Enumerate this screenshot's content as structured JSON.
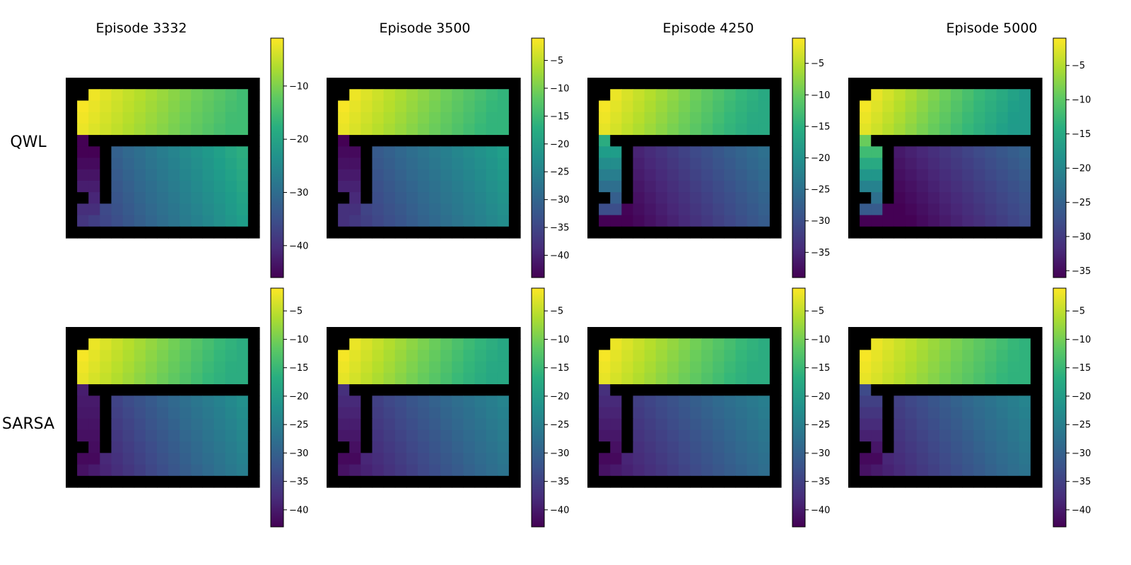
{
  "columns": [
    "Episode 3332",
    "Episode 3500",
    "Episode 4250",
    "Episode 5000"
  ],
  "rows": [
    "QWL",
    "SARSA"
  ],
  "chart_data": {
    "type": "heatmap",
    "colormap": "viridis",
    "grid_cols": 17,
    "grid_rows": 14,
    "walls": "outer border; horizontal inner wall across row 5 from col 2 to col 15; vertical inner wall at col 3 from row 6 to row 11; corner cell (1,1) and (10,1) blocked",
    "panels": [
      {
        "row": "QWL",
        "column": "Episode 3332",
        "colorbar": {
          "vmin": -46,
          "vmax": -1,
          "ticks": [
            -10,
            -20,
            -30,
            -40
          ]
        },
        "top_room": [
          -1,
          -15
        ],
        "left_corridor": [
          -46,
          -40
        ],
        "right_room": [
          -18,
          -36
        ]
      },
      {
        "row": "QWL",
        "column": "Episode 3500",
        "colorbar": {
          "vmin": -44,
          "vmax": -1,
          "ticks": [
            -5,
            -10,
            -15,
            -20,
            -25,
            -30,
            -35,
            -40
          ]
        },
        "top_room": [
          -1,
          -16
        ],
        "left_corridor": [
          -43,
          -38
        ],
        "right_room": [
          -20,
          -35
        ]
      },
      {
        "row": "QWL",
        "column": "Episode 4250",
        "colorbar": {
          "vmin": -39,
          "vmax": -1,
          "ticks": [
            -5,
            -10,
            -15,
            -20,
            -25,
            -30,
            -35
          ]
        },
        "top_room": [
          -1,
          -16
        ],
        "left_corridor": [
          -18,
          -30
        ],
        "right_room": [
          -25,
          -38
        ]
      },
      {
        "row": "QWL",
        "column": "Episode 5000",
        "colorbar": {
          "vmin": -36,
          "vmax": -1,
          "ticks": [
            -5,
            -10,
            -15,
            -20,
            -25,
            -30,
            -35
          ]
        },
        "top_room": [
          -1,
          -17
        ],
        "left_corridor": [
          -12,
          -26
        ],
        "right_room": [
          -25,
          -36
        ]
      },
      {
        "row": "SARSA",
        "column": "Episode 3332",
        "colorbar": {
          "vmin": -43,
          "vmax": -1,
          "ticks": [
            -5,
            -10,
            -15,
            -20,
            -25,
            -30,
            -35,
            -40
          ]
        },
        "top_room": [
          -1,
          -17
        ],
        "left_corridor": [
          -40,
          -42
        ],
        "right_room": [
          -22,
          -38
        ]
      },
      {
        "row": "SARSA",
        "column": "Episode 3500",
        "colorbar": {
          "vmin": -43,
          "vmax": -1,
          "ticks": [
            -5,
            -10,
            -15,
            -20,
            -25,
            -30,
            -35,
            -40
          ]
        },
        "top_room": [
          -1,
          -18
        ],
        "left_corridor": [
          -38,
          -42
        ],
        "right_room": [
          -24,
          -38
        ]
      },
      {
        "row": "SARSA",
        "column": "Episode 4250",
        "colorbar": {
          "vmin": -43,
          "vmax": -1,
          "ticks": [
            -5,
            -10,
            -15,
            -20,
            -25,
            -30,
            -35,
            -40
          ]
        },
        "top_room": [
          -1,
          -17
        ],
        "left_corridor": [
          -38,
          -42
        ],
        "right_room": [
          -25,
          -38
        ]
      },
      {
        "row": "SARSA",
        "column": "Episode 5000",
        "colorbar": {
          "vmin": -43,
          "vmax": -1,
          "ticks": [
            -5,
            -10,
            -15,
            -20,
            -25,
            -30,
            -35,
            -40
          ]
        },
        "top_room": [
          -1,
          -16
        ],
        "left_corridor": [
          -35,
          -42
        ],
        "right_room": [
          -24,
          -38
        ]
      }
    ]
  }
}
